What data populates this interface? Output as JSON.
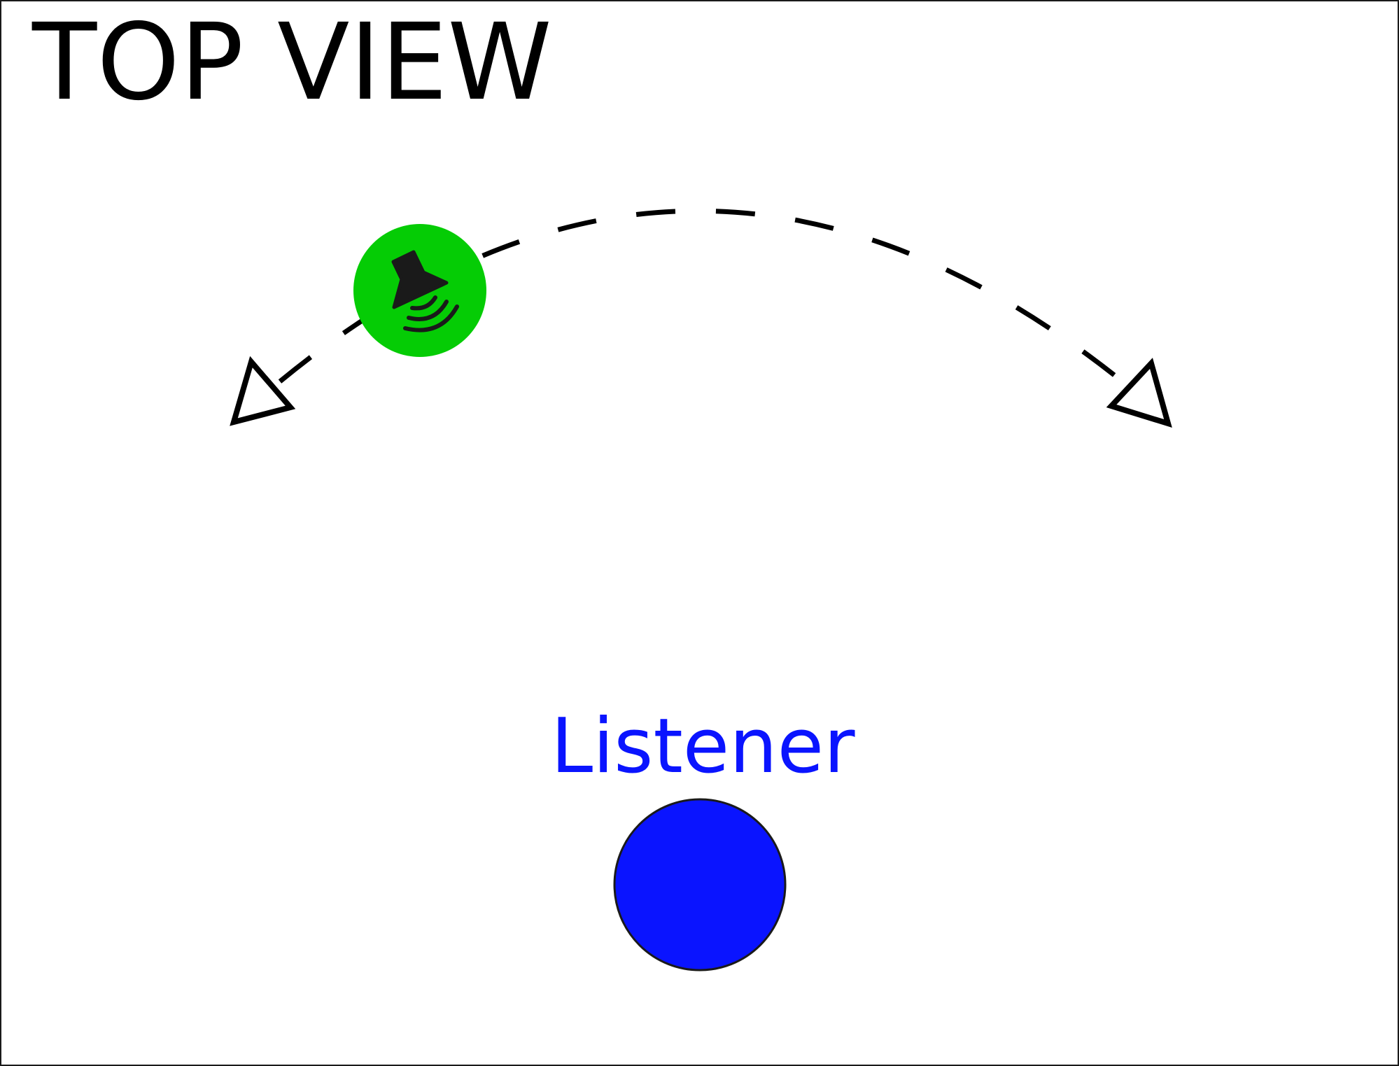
{
  "title": "TOP VIEW",
  "listener": {
    "label": "Listener",
    "color": "#0a14ff"
  },
  "source": {
    "color": "#05cc05",
    "icon": "speaker-sound-icon"
  },
  "path": {
    "style": "dashed arc",
    "arrowheads": "both ends, hollow triangles"
  },
  "colors": {
    "frame": "#1a1a1a",
    "stroke": "#000000",
    "icon": "#1a1a1a"
  }
}
